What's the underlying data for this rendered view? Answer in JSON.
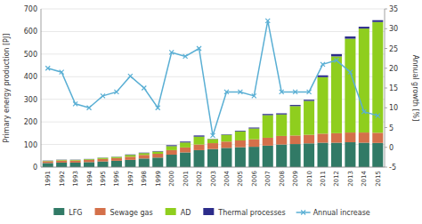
{
  "chart_data": {
    "type": "bar",
    "stacked": true,
    "grid": true,
    "legend": "bottom",
    "ylabel": "Primary energy production [PJ]",
    "y2label": "Annual growth [%]",
    "categories": [
      "1991",
      "1992",
      "1993",
      "1994",
      "1995",
      "1996",
      "1997",
      "1998",
      "1999",
      "2000",
      "2001",
      "2002",
      "2003",
      "2004",
      "2005",
      "2006",
      "2007",
      "2008",
      "2009",
      "2010",
      "2011",
      "2012",
      "2013",
      "2014",
      "2015"
    ],
    "series": [
      {
        "name": "LFG",
        "color": "#317a66",
        "values": [
          18,
          20,
          20,
          22,
          25,
          28,
          32,
          38,
          42,
          55,
          65,
          75,
          80,
          85,
          88,
          90,
          95,
          100,
          102,
          105,
          108,
          108,
          110,
          108,
          107
        ]
      },
      {
        "name": "Sewage gas",
        "color": "#d4704a",
        "values": [
          8,
          9,
          9,
          10,
          11,
          12,
          14,
          16,
          17,
          20,
          22,
          25,
          26,
          28,
          30,
          33,
          35,
          38,
          38,
          38,
          40,
          42,
          43,
          45,
          45
        ]
      },
      {
        "name": "AD",
        "color": "#8fce1e",
        "values": [
          2,
          3,
          3,
          3,
          5,
          5,
          8,
          8,
          10,
          18,
          22,
          35,
          18,
          30,
          40,
          48,
          100,
          95,
          130,
          150,
          250,
          340,
          415,
          460,
          490
        ]
      },
      {
        "name": "Thermal processes",
        "color": "#2c2c8a",
        "values": [
          1,
          1,
          1,
          1,
          1,
          1,
          2,
          2,
          2,
          4,
          4,
          5,
          1,
          2,
          3,
          4,
          5,
          5,
          5,
          5,
          8,
          10,
          10,
          8,
          8
        ]
      },
      {
        "name": "Annual increase",
        "type": "line",
        "axis": "y2",
        "marker": "x",
        "color": "#5aafd4",
        "values": [
          20,
          19,
          11,
          10,
          13,
          14,
          18,
          15,
          10,
          24,
          23,
          25,
          3,
          14,
          14,
          13,
          32,
          14,
          14,
          14,
          21,
          22,
          19,
          9,
          8
        ]
      }
    ],
    "ylim": [
      0,
      700
    ],
    "yticks": [
      0,
      100,
      200,
      300,
      400,
      500,
      600,
      700
    ],
    "y2lim": [
      -5,
      35
    ],
    "y2ticks": [
      -5,
      0,
      5,
      10,
      15,
      20,
      25,
      30,
      35
    ]
  }
}
